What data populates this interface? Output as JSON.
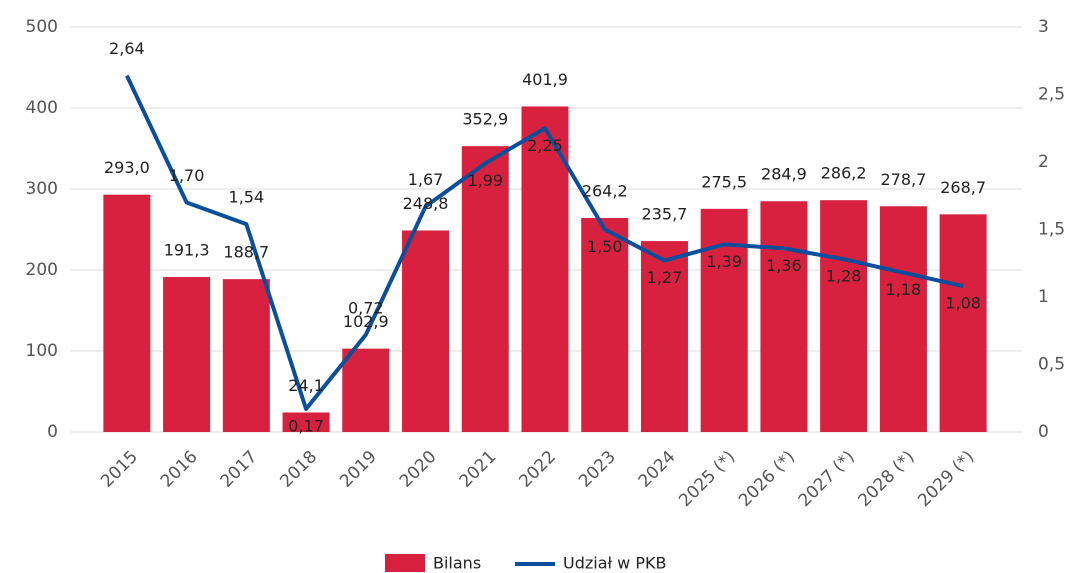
{
  "chart_data": {
    "type": "bar-line",
    "categories": [
      "2015",
      "2016",
      "2017",
      "2018",
      "2019",
      "2020",
      "2021",
      "2022",
      "2023",
      "2024",
      "2025 (*)",
      "2026 (*)",
      "2027 (*)",
      "2028 (*)",
      "2029 (*)"
    ],
    "series": [
      {
        "name": "Bilans",
        "color": "#d7213e",
        "type": "bar",
        "values": [
          293.0,
          191.3,
          188.7,
          24.1,
          102.9,
          248.8,
          352.9,
          401.9,
          264.2,
          235.7,
          275.5,
          284.9,
          286.2,
          278.7,
          268.7
        ],
        "value_labels": [
          "293,0",
          "191,3",
          "188,7",
          "24,1",
          "102,9",
          "248,8",
          "352,9",
          "401,9",
          "264,2",
          "235,7",
          "275,5",
          "284,9",
          "286,2",
          "278,7",
          "268,7"
        ]
      },
      {
        "name": "Udział w PKB",
        "color": "#0b4f9c",
        "type": "line",
        "axis": "y2",
        "values": [
          2.64,
          1.7,
          1.54,
          0.17,
          0.72,
          1.67,
          1.99,
          2.25,
          1.5,
          1.27,
          1.39,
          1.36,
          1.28,
          1.18,
          1.08
        ],
        "value_labels": [
          "2,64",
          "1,70",
          "1,54",
          "0,17",
          "0,72",
          "1,67",
          "1,99",
          "2,25",
          "1,50",
          "1,27",
          "1,39",
          "1,36",
          "1,28",
          "1,18",
          "1,08"
        ]
      }
    ],
    "ylim": [
      0,
      500
    ],
    "yticks": [
      0,
      100,
      200,
      300,
      400,
      500
    ],
    "y2lim": [
      0,
      3
    ],
    "y2ticks": [
      0,
      {
        "value": 0.5,
        "label": "0,5"
      },
      1,
      {
        "value": 1.5,
        "label": "1,5"
      },
      2,
      {
        "value": 2.5,
        "label": "2,5"
      },
      3
    ],
    "grid": true,
    "legend": "bottom"
  }
}
